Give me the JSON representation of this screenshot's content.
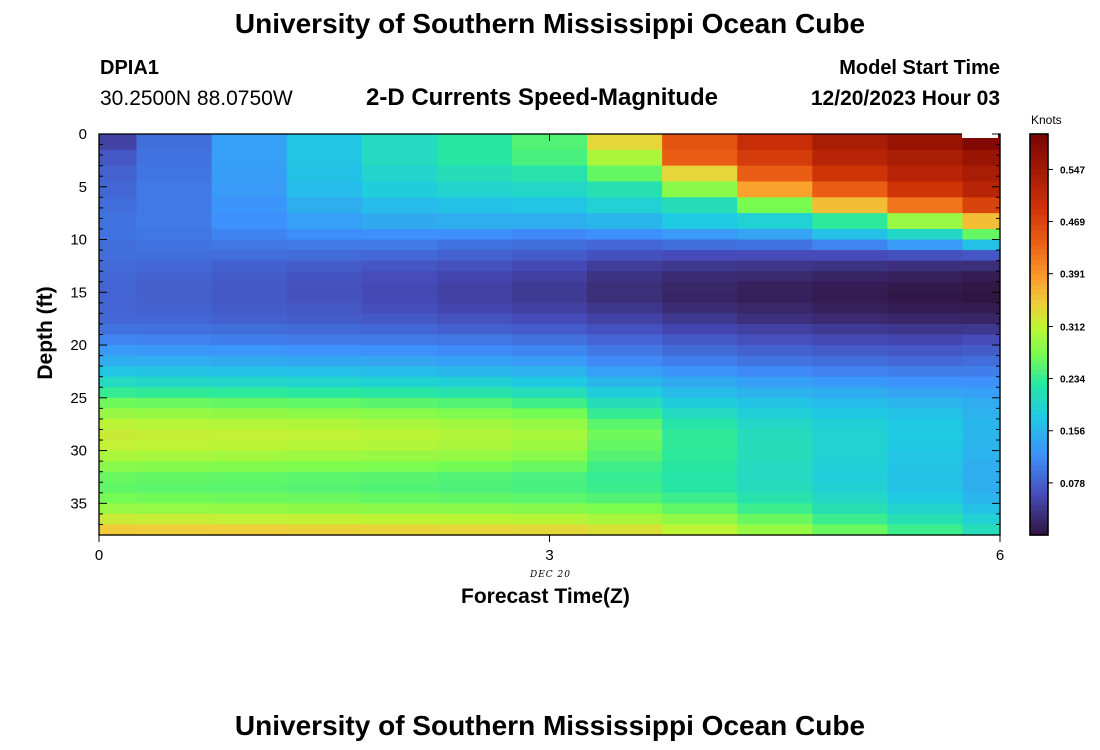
{
  "header": {
    "title": "University of Southern Mississippi Ocean Cube",
    "station": "DPIA1",
    "coords": "30.2500N  88.0750W",
    "subtitle": "2-D Currents Speed-Magnitude",
    "model_start_label": "Model Start Time",
    "model_start_value": "12/20/2023 Hour 03",
    "footer_title": "University of Southern Mississippi Ocean Cube"
  },
  "chart_data": {
    "type": "heatmap",
    "title": "2-D Currents Speed-Magnitude",
    "xlabel": "Forecast Time(Z)",
    "ylabel": "Depth (ft)",
    "date_label": "DEC 20",
    "xlim": [
      0,
      6
    ],
    "ylim": [
      0,
      38
    ],
    "x_ticks": [
      0,
      3,
      6
    ],
    "x_tick_labels": [
      "0",
      "3",
      "6"
    ],
    "y_ticks": [
      0,
      5,
      10,
      15,
      20,
      25,
      30,
      35
    ],
    "y_tick_labels": [
      "0",
      "5",
      "10",
      "15",
      "20",
      "25",
      "30",
      "35"
    ],
    "time_edges": [
      0,
      0.25,
      0.75,
      1.25,
      1.75,
      2.25,
      2.75,
      3.25,
      3.75,
      4.25,
      4.75,
      5.25,
      5.75,
      6
    ],
    "depth_edges": [
      0,
      1.5,
      3,
      4.5,
      6,
      7.5,
      9,
      10,
      11,
      12,
      13,
      14,
      15,
      16,
      17,
      18,
      19,
      20,
      21,
      22,
      23,
      24,
      25,
      26,
      27,
      28,
      29,
      30,
      31,
      32,
      33,
      34,
      35,
      36,
      37,
      38
    ],
    "speed_knots": [
      [
        0.05,
        0.09,
        0.135,
        0.175,
        0.205,
        0.225,
        0.25,
        0.34,
        0.45,
        0.5,
        0.54,
        0.56,
        0.59
      ],
      [
        0.07,
        0.095,
        0.135,
        0.175,
        0.205,
        0.225,
        0.245,
        0.3,
        0.44,
        0.48,
        0.52,
        0.54,
        0.56
      ],
      [
        0.08,
        0.097,
        0.133,
        0.17,
        0.195,
        0.21,
        0.22,
        0.26,
        0.34,
        0.44,
        0.49,
        0.52,
        0.54
      ],
      [
        0.085,
        0.1,
        0.13,
        0.165,
        0.185,
        0.195,
        0.2,
        0.215,
        0.28,
        0.38,
        0.44,
        0.49,
        0.52
      ],
      [
        0.09,
        0.1,
        0.125,
        0.15,
        0.165,
        0.17,
        0.175,
        0.19,
        0.21,
        0.27,
        0.36,
        0.42,
        0.47
      ],
      [
        0.095,
        0.1,
        0.12,
        0.135,
        0.145,
        0.15,
        0.15,
        0.16,
        0.18,
        0.19,
        0.23,
        0.29,
        0.36
      ],
      [
        0.095,
        0.098,
        0.11,
        0.118,
        0.12,
        0.12,
        0.115,
        0.12,
        0.13,
        0.14,
        0.17,
        0.2,
        0.26
      ],
      [
        0.09,
        0.095,
        0.098,
        0.1,
        0.1,
        0.095,
        0.09,
        0.085,
        0.09,
        0.095,
        0.11,
        0.13,
        0.17
      ],
      [
        0.09,
        0.09,
        0.09,
        0.088,
        0.085,
        0.08,
        0.075,
        0.065,
        0.06,
        0.06,
        0.06,
        0.065,
        0.07
      ],
      [
        0.088,
        0.085,
        0.08,
        0.075,
        0.07,
        0.065,
        0.058,
        0.045,
        0.04,
        0.038,
        0.035,
        0.032,
        0.03
      ],
      [
        0.085,
        0.08,
        0.075,
        0.068,
        0.062,
        0.055,
        0.048,
        0.035,
        0.028,
        0.024,
        0.02,
        0.016,
        0.012
      ],
      [
        0.083,
        0.078,
        0.072,
        0.065,
        0.058,
        0.05,
        0.042,
        0.03,
        0.022,
        0.016,
        0.012,
        0.008,
        0.005
      ],
      [
        0.082,
        0.078,
        0.072,
        0.065,
        0.058,
        0.05,
        0.042,
        0.03,
        0.02,
        0.015,
        0.01,
        0.006,
        0.003
      ],
      [
        0.083,
        0.08,
        0.075,
        0.07,
        0.063,
        0.055,
        0.048,
        0.038,
        0.028,
        0.022,
        0.016,
        0.012,
        0.01
      ],
      [
        0.085,
        0.084,
        0.08,
        0.076,
        0.072,
        0.066,
        0.06,
        0.05,
        0.04,
        0.032,
        0.026,
        0.022,
        0.02
      ],
      [
        0.095,
        0.092,
        0.09,
        0.088,
        0.085,
        0.08,
        0.075,
        0.065,
        0.055,
        0.048,
        0.042,
        0.038,
        0.04
      ],
      [
        0.11,
        0.108,
        0.105,
        0.102,
        0.1,
        0.098,
        0.092,
        0.082,
        0.072,
        0.064,
        0.058,
        0.055,
        0.06
      ],
      [
        0.13,
        0.128,
        0.125,
        0.122,
        0.12,
        0.115,
        0.11,
        0.098,
        0.088,
        0.08,
        0.074,
        0.07,
        0.075
      ],
      [
        0.15,
        0.148,
        0.145,
        0.142,
        0.14,
        0.135,
        0.13,
        0.115,
        0.105,
        0.096,
        0.09,
        0.086,
        0.09
      ],
      [
        0.175,
        0.172,
        0.17,
        0.168,
        0.165,
        0.16,
        0.155,
        0.135,
        0.125,
        0.115,
        0.108,
        0.104,
        0.105
      ],
      [
        0.205,
        0.2,
        0.198,
        0.195,
        0.192,
        0.188,
        0.18,
        0.16,
        0.145,
        0.135,
        0.128,
        0.122,
        0.12
      ],
      [
        0.235,
        0.232,
        0.23,
        0.228,
        0.225,
        0.22,
        0.21,
        0.185,
        0.165,
        0.155,
        0.148,
        0.14,
        0.135
      ],
      [
        0.265,
        0.262,
        0.26,
        0.258,
        0.255,
        0.25,
        0.24,
        0.21,
        0.185,
        0.172,
        0.165,
        0.158,
        0.148
      ],
      [
        0.29,
        0.288,
        0.285,
        0.283,
        0.28,
        0.275,
        0.268,
        0.235,
        0.205,
        0.188,
        0.178,
        0.17,
        0.155
      ],
      [
        0.31,
        0.308,
        0.305,
        0.303,
        0.3,
        0.295,
        0.288,
        0.255,
        0.222,
        0.2,
        0.188,
        0.178,
        0.16
      ],
      [
        0.32,
        0.318,
        0.315,
        0.313,
        0.31,
        0.305,
        0.298,
        0.265,
        0.232,
        0.208,
        0.192,
        0.18,
        0.16
      ],
      [
        0.315,
        0.312,
        0.31,
        0.308,
        0.305,
        0.3,
        0.292,
        0.26,
        0.232,
        0.21,
        0.192,
        0.178,
        0.158
      ],
      [
        0.3,
        0.298,
        0.295,
        0.293,
        0.29,
        0.286,
        0.28,
        0.252,
        0.23,
        0.21,
        0.19,
        0.175,
        0.155
      ],
      [
        0.28,
        0.278,
        0.276,
        0.274,
        0.272,
        0.268,
        0.262,
        0.24,
        0.225,
        0.205,
        0.188,
        0.172,
        0.15
      ],
      [
        0.262,
        0.26,
        0.258,
        0.256,
        0.254,
        0.25,
        0.246,
        0.235,
        0.222,
        0.205,
        0.186,
        0.17,
        0.15
      ],
      [
        0.258,
        0.256,
        0.254,
        0.252,
        0.25,
        0.248,
        0.245,
        0.238,
        0.225,
        0.208,
        0.19,
        0.172,
        0.152
      ],
      [
        0.268,
        0.266,
        0.264,
        0.262,
        0.26,
        0.258,
        0.256,
        0.25,
        0.238,
        0.22,
        0.2,
        0.18,
        0.158
      ],
      [
        0.29,
        0.288,
        0.286,
        0.284,
        0.282,
        0.28,
        0.278,
        0.272,
        0.258,
        0.238,
        0.215,
        0.195,
        0.17
      ],
      [
        0.32,
        0.318,
        0.316,
        0.314,
        0.312,
        0.31,
        0.308,
        0.3,
        0.285,
        0.262,
        0.238,
        0.215,
        0.19
      ],
      [
        0.35,
        0.348,
        0.346,
        0.344,
        0.342,
        0.34,
        0.338,
        0.33,
        0.312,
        0.288,
        0.262,
        0.238,
        0.21
      ]
    ],
    "colorbar": {
      "title": "Knots",
      "min": 0,
      "max": 0.6,
      "tick_values": [
        0.078,
        0.156,
        0.234,
        0.312,
        0.391,
        0.469,
        0.547
      ],
      "tick_labels": [
        "0.078",
        "0.156",
        "0.234",
        "0.312",
        "0.391",
        "0.469",
        "0.547"
      ]
    }
  }
}
